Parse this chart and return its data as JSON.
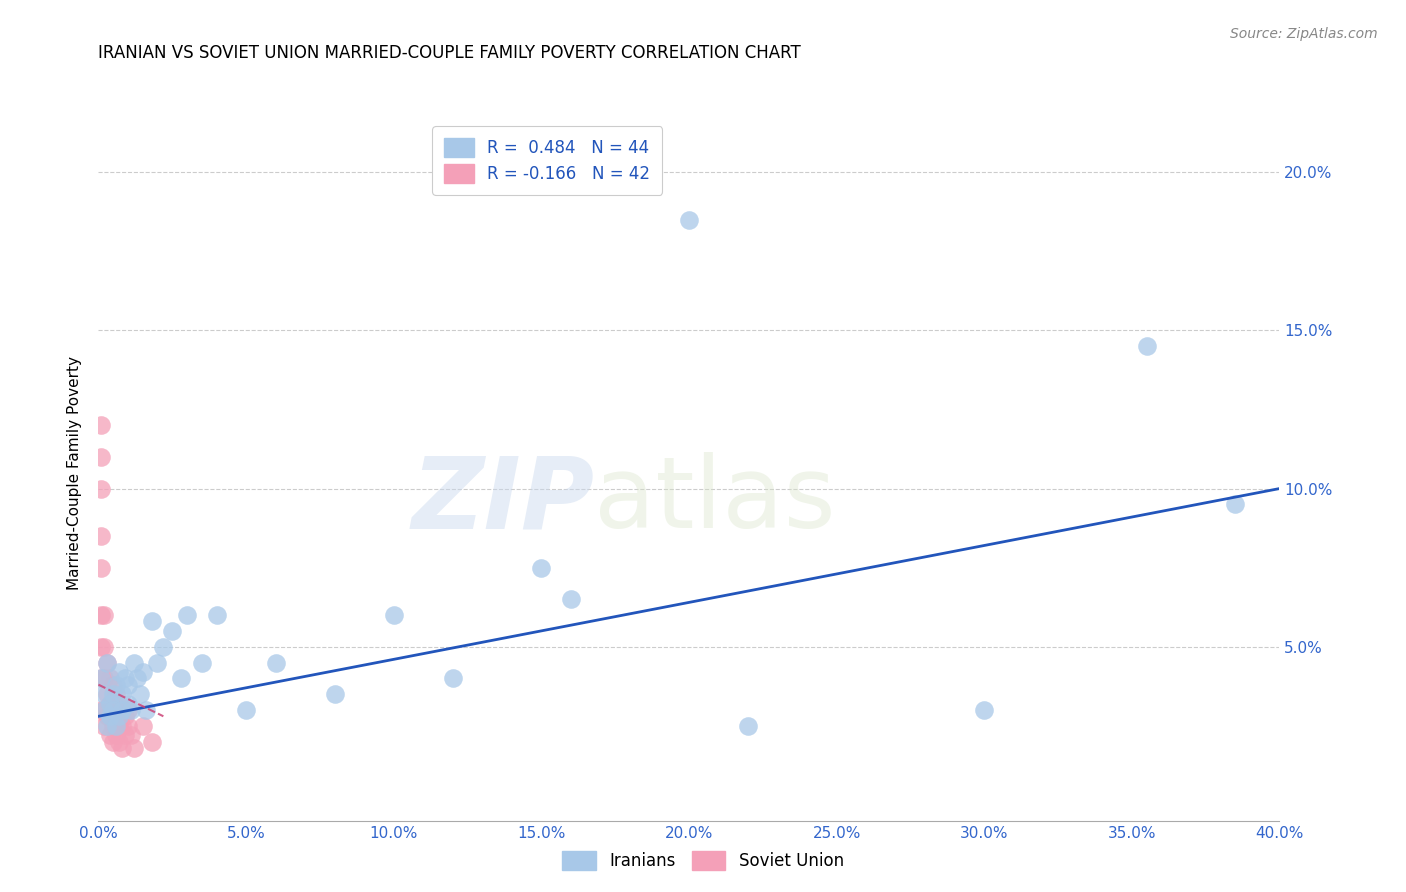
{
  "title": "IRANIAN VS SOVIET UNION MARRIED-COUPLE FAMILY POVERTY CORRELATION CHART",
  "source": "Source: ZipAtlas.com",
  "ylabel": "Married-Couple Family Poverty",
  "watermark_zip": "ZIP",
  "watermark_atlas": "atlas",
  "legend_iranians": "Iranians",
  "legend_soviet": "Soviet Union",
  "r_iranians": 0.484,
  "n_iranians": 44,
  "r_soviet": -0.166,
  "n_soviet": 42,
  "color_iranians": "#a8c8e8",
  "color_soviet": "#f4a0b8",
  "color_line_iranians": "#2255bb",
  "color_line_soviet": "#cc4477",
  "xlim": [
    0.0,
    0.4
  ],
  "ylim": [
    -0.005,
    0.215
  ],
  "xticks": [
    0.0,
    0.05,
    0.1,
    0.15,
    0.2,
    0.25,
    0.3,
    0.35,
    0.4
  ],
  "yticks": [
    0.05,
    0.1,
    0.15,
    0.2
  ],
  "iranians_x": [
    0.001,
    0.002,
    0.002,
    0.003,
    0.003,
    0.004,
    0.004,
    0.005,
    0.005,
    0.006,
    0.006,
    0.007,
    0.007,
    0.008,
    0.008,
    0.009,
    0.01,
    0.01,
    0.011,
    0.012,
    0.013,
    0.014,
    0.015,
    0.016,
    0.018,
    0.02,
    0.022,
    0.025,
    0.028,
    0.03,
    0.035,
    0.04,
    0.05,
    0.06,
    0.08,
    0.1,
    0.12,
    0.15,
    0.16,
    0.2,
    0.22,
    0.3,
    0.355,
    0.385
  ],
  "iranians_y": [
    0.04,
    0.035,
    0.03,
    0.045,
    0.025,
    0.032,
    0.028,
    0.035,
    0.03,
    0.038,
    0.025,
    0.042,
    0.028,
    0.035,
    0.03,
    0.04,
    0.038,
    0.032,
    0.03,
    0.045,
    0.04,
    0.035,
    0.042,
    0.03,
    0.058,
    0.045,
    0.05,
    0.055,
    0.04,
    0.06,
    0.045,
    0.06,
    0.03,
    0.045,
    0.035,
    0.06,
    0.04,
    0.075,
    0.065,
    0.185,
    0.025,
    0.03,
    0.145,
    0.095
  ],
  "soviet_x": [
    0.001,
    0.001,
    0.001,
    0.001,
    0.001,
    0.001,
    0.001,
    0.001,
    0.001,
    0.002,
    0.002,
    0.002,
    0.002,
    0.002,
    0.003,
    0.003,
    0.003,
    0.004,
    0.004,
    0.004,
    0.004,
    0.005,
    0.005,
    0.005,
    0.005,
    0.006,
    0.006,
    0.006,
    0.007,
    0.007,
    0.007,
    0.008,
    0.008,
    0.008,
    0.009,
    0.009,
    0.01,
    0.01,
    0.011,
    0.012,
    0.015,
    0.018
  ],
  "soviet_y": [
    0.12,
    0.11,
    0.1,
    0.085,
    0.075,
    0.06,
    0.05,
    0.04,
    0.03,
    0.06,
    0.05,
    0.04,
    0.03,
    0.025,
    0.045,
    0.035,
    0.028,
    0.04,
    0.032,
    0.028,
    0.022,
    0.038,
    0.03,
    0.025,
    0.02,
    0.035,
    0.028,
    0.022,
    0.032,
    0.025,
    0.02,
    0.03,
    0.025,
    0.018,
    0.028,
    0.022,
    0.03,
    0.025,
    0.022,
    0.018,
    0.025,
    0.02
  ],
  "line_ir_x0": 0.0,
  "line_ir_x1": 0.4,
  "line_ir_y0": 0.028,
  "line_ir_y1": 0.1,
  "line_sv_x0": 0.0,
  "line_sv_x1": 0.022,
  "line_sv_y0": 0.038,
  "line_sv_y1": 0.028,
  "background_color": "#ffffff",
  "grid_color": "#cccccc",
  "tick_color": "#3366cc"
}
